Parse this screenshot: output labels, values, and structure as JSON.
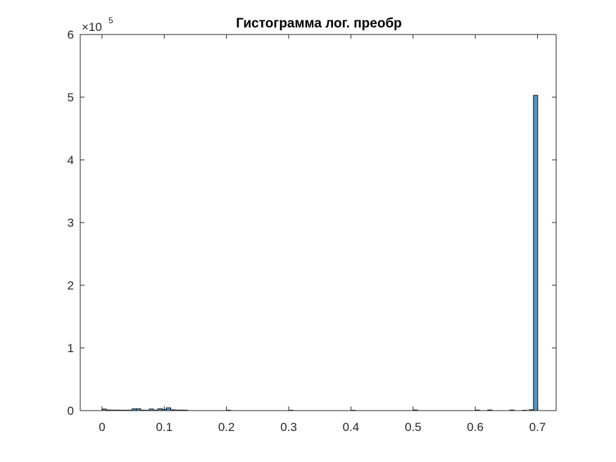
{
  "chart_data": {
    "type": "bar",
    "title": "Гистограмма лог. преобр",
    "xlabel": "",
    "ylabel": "",
    "xlim": [
      -0.035,
      0.73
    ],
    "ylim": [
      0,
      600000
    ],
    "x_ticks": [
      0,
      0.1,
      0.2,
      0.3,
      0.4,
      0.5,
      0.6,
      0.7
    ],
    "x_tick_labels": [
      "0",
      "0.1",
      "0.2",
      "0.3",
      "0.4",
      "0.5",
      "0.6",
      "0.7"
    ],
    "y_ticks": [
      0,
      100000,
      200000,
      300000,
      400000,
      500000,
      600000
    ],
    "y_tick_labels": [
      "0",
      "1",
      "2",
      "3",
      "4",
      "5",
      "6"
    ],
    "y_exponent_base": "×10",
    "y_exponent": "5",
    "bin_width": 0.0069,
    "bins": [
      {
        "x": 0.0,
        "count": 2500
      },
      {
        "x": 0.0069,
        "count": 1000
      },
      {
        "x": 0.0138,
        "count": 800
      },
      {
        "x": 0.0207,
        "count": 800
      },
      {
        "x": 0.0276,
        "count": 700
      },
      {
        "x": 0.0345,
        "count": 700
      },
      {
        "x": 0.0414,
        "count": 700
      },
      {
        "x": 0.0483,
        "count": 2800
      },
      {
        "x": 0.0552,
        "count": 3000
      },
      {
        "x": 0.0621,
        "count": 800
      },
      {
        "x": 0.069,
        "count": 600
      },
      {
        "x": 0.0759,
        "count": 2500
      },
      {
        "x": 0.0828,
        "count": 800
      },
      {
        "x": 0.0897,
        "count": 3000
      },
      {
        "x": 0.0966,
        "count": 2000
      },
      {
        "x": 0.1035,
        "count": 4500
      },
      {
        "x": 0.1104,
        "count": 1200
      },
      {
        "x": 0.1173,
        "count": 900
      },
      {
        "x": 0.1242,
        "count": 800
      },
      {
        "x": 0.1311,
        "count": 700
      },
      {
        "x": 0.2,
        "count": 700
      },
      {
        "x": 0.3,
        "count": 600
      },
      {
        "x": 0.4,
        "count": 600
      },
      {
        "x": 0.5,
        "count": 900
      },
      {
        "x": 0.5,
        "count": 800
      },
      {
        "x": 0.6,
        "count": 900
      },
      {
        "x": 0.62,
        "count": 1000
      },
      {
        "x": 0.6555,
        "count": 900
      },
      {
        "x": 0.676,
        "count": 600
      },
      {
        "x": 0.6866,
        "count": 1400
      },
      {
        "x": 0.6935,
        "count": 503000
      }
    ],
    "bar_color": "#4d97c4",
    "bar_edge_color": "#1a1a1a",
    "grid": false,
    "legend": "none"
  }
}
